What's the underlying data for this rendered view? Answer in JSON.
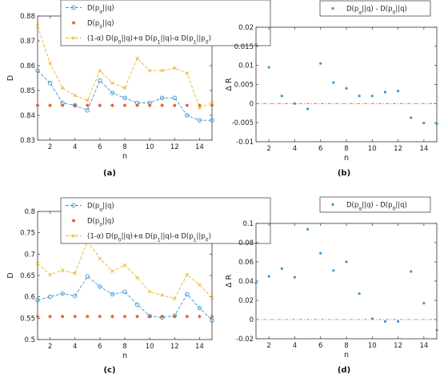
{
  "chart_data": [
    {
      "type": "line",
      "caption": "(a)",
      "xlabel": "n",
      "ylabel": "D",
      "xlim": [
        1,
        15
      ],
      "ylim": [
        0.83,
        0.88
      ],
      "xticks": [
        2,
        4,
        6,
        8,
        10,
        12,
        14
      ],
      "yticks": [
        0.83,
        0.84,
        0.85,
        0.86,
        0.87,
        0.88
      ],
      "ytick_labels": [
        "0.83",
        "0.84",
        "0.85",
        "0.86",
        "0.87",
        "0.88"
      ],
      "grid": false,
      "legend_position": "top-left",
      "x": [
        1,
        2,
        3,
        4,
        5,
        6,
        7,
        8,
        9,
        10,
        11,
        12,
        13,
        14,
        15
      ],
      "series": [
        {
          "legend": [
            "D(p",
            "α",
            "||q)"
          ],
          "color": "#3a97d4",
          "marker": "circle",
          "line": "dash",
          "values": [
            0.858,
            0.853,
            0.845,
            0.844,
            0.842,
            0.854,
            0.849,
            0.847,
            0.845,
            0.845,
            0.847,
            0.847,
            0.84,
            0.838,
            0.838
          ]
        },
        {
          "legend": [
            "D(p",
            "0",
            "||q)"
          ],
          "color": "#e2592b",
          "marker": "star",
          "line": "none",
          "values": [
            0.844,
            0.844,
            0.844,
            0.844,
            0.844,
            0.844,
            0.844,
            0.844,
            0.844,
            0.844,
            0.844,
            0.844,
            0.844,
            0.844,
            0.844
          ]
        },
        {
          "legend": [
            "(1-α) D(p",
            "0",
            "||q)+α D(p",
            "1",
            "||q)-α D(p",
            "1",
            "||p",
            "0",
            ")"
          ],
          "color": "#f0b32b",
          "marker": "x",
          "line": "dash",
          "values": [
            0.876,
            0.861,
            0.851,
            0.848,
            0.846,
            0.858,
            0.853,
            0.851,
            0.863,
            0.858,
            0.858,
            0.859,
            0.857,
            0.843,
            0.845
          ]
        }
      ]
    },
    {
      "type": "scatter",
      "caption": "(b)",
      "xlabel": "n",
      "ylabel": "Δ R",
      "xlim": [
        1,
        15
      ],
      "ylim": [
        -0.01,
        0.02
      ],
      "xticks": [
        2,
        4,
        6,
        8,
        10,
        12,
        14
      ],
      "yticks": [
        -0.01,
        -0.005,
        0,
        0.005,
        0.01,
        0.015,
        0.02
      ],
      "ytick_labels": [
        "-0.01",
        "-0.005",
        "0",
        "0.005",
        "0.01",
        "0.015",
        "0.02"
      ],
      "grid": false,
      "legend_position": "top-right",
      "x": [
        1,
        2,
        3,
        4,
        5,
        6,
        7,
        8,
        9,
        10,
        11,
        12,
        13,
        14,
        15
      ],
      "reference_line": {
        "y": 0,
        "color": "#e2592b"
      },
      "series": [
        {
          "legend": [
            "D(p",
            "α",
            "||q) - D(p",
            "0",
            "||q)"
          ],
          "color": "#3a97d4",
          "marker": "dot",
          "values": [
            0.0155,
            0.0095,
            0.002,
            0.0,
            -0.0014,
            0.0105,
            0.0055,
            0.004,
            0.002,
            0.002,
            0.003,
            0.0033,
            -0.0037,
            -0.0051,
            -0.0053
          ]
        }
      ]
    },
    {
      "type": "line",
      "caption": "(c)",
      "xlabel": "n",
      "ylabel": "D",
      "xlim": [
        1,
        15
      ],
      "ylim": [
        0.5,
        0.8
      ],
      "xticks": [
        2,
        4,
        6,
        8,
        10,
        12,
        14
      ],
      "yticks": [
        0.5,
        0.55,
        0.6,
        0.65,
        0.7,
        0.75,
        0.8
      ],
      "ytick_labels": [
        "0.5",
        "0.55",
        "0.6",
        "0.65",
        "0.7",
        "0.75",
        "0.8"
      ],
      "grid": false,
      "legend_position": "top-left",
      "x": [
        1,
        2,
        3,
        4,
        5,
        6,
        7,
        8,
        9,
        10,
        11,
        12,
        13,
        14,
        15
      ],
      "series": [
        {
          "legend": [
            "D(p",
            "α",
            "||q)"
          ],
          "color": "#3a97d4",
          "marker": "circle",
          "line": "dash",
          "values": [
            0.592,
            0.6,
            0.608,
            0.602,
            0.648,
            0.624,
            0.606,
            0.612,
            0.582,
            0.555,
            0.552,
            0.556,
            0.606,
            0.574,
            0.545
          ]
        },
        {
          "legend": [
            "D(p",
            "0",
            "||q)"
          ],
          "color": "#e2592b",
          "marker": "star",
          "line": "none",
          "values": [
            0.554,
            0.554,
            0.554,
            0.554,
            0.554,
            0.554,
            0.554,
            0.554,
            0.554,
            0.554,
            0.554,
            0.554,
            0.554,
            0.554,
            0.554
          ]
        },
        {
          "legend": [
            "(1-α) D(p",
            "0",
            "||q)+α D(p",
            "1",
            "||q)-α D(p",
            "1",
            "||p",
            "0",
            ")"
          ],
          "color": "#f0b32b",
          "marker": "x",
          "line": "dash",
          "values": [
            0.678,
            0.652,
            0.662,
            0.655,
            0.73,
            0.69,
            0.66,
            0.674,
            0.645,
            0.612,
            0.604,
            0.596,
            0.652,
            0.628,
            0.598
          ]
        }
      ]
    },
    {
      "type": "scatter",
      "caption": "(d)",
      "xlabel": "n",
      "ylabel": "Δ R",
      "xlim": [
        1,
        15
      ],
      "ylim": [
        -0.02,
        0.1
      ],
      "xticks": [
        2,
        4,
        6,
        8,
        10,
        12,
        14
      ],
      "yticks": [
        -0.02,
        0,
        0.02,
        0.04,
        0.06,
        0.08,
        0.1
      ],
      "ytick_labels": [
        "-0.02",
        "0",
        "0.02",
        "0.04",
        "0.06",
        "0.08",
        "0.1"
      ],
      "grid": false,
      "legend_position": "top-right",
      "x": [
        1,
        2,
        3,
        4,
        5,
        6,
        7,
        8,
        9,
        10,
        11,
        12,
        13,
        14,
        15
      ],
      "reference_line": {
        "y": 0,
        "color": "#e2592b"
      },
      "series": [
        {
          "legend": [
            "D(p",
            "α",
            "||q) - D(p",
            "0",
            "||q)"
          ],
          "color": "#3a97d4",
          "marker": "dot",
          "values": [
            0.038,
            0.045,
            0.053,
            0.044,
            0.094,
            0.069,
            0.051,
            0.06,
            0.027,
            0.001,
            -0.002,
            -0.002,
            0.05,
            0.017,
            -0.011
          ]
        }
      ]
    }
  ]
}
